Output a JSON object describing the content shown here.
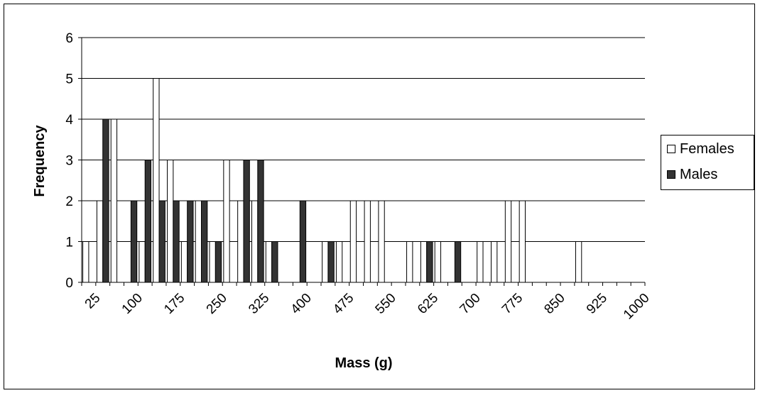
{
  "chart_data": {
    "type": "bar",
    "xlabel": "Mass (g)",
    "ylabel": "Frequency",
    "ylim": [
      0,
      6
    ],
    "yticks": [
      "0",
      "1",
      "2",
      "3",
      "4",
      "5",
      "6"
    ],
    "categories": [
      "25",
      "50",
      "75",
      "100",
      "125",
      "150",
      "175",
      "200",
      "225",
      "250",
      "275",
      "300",
      "325",
      "350",
      "375",
      "400",
      "425",
      "450",
      "475",
      "500",
      "525",
      "550",
      "575",
      "600",
      "625",
      "650",
      "675",
      "700",
      "725",
      "750",
      "775",
      "800",
      "825",
      "850",
      "875",
      "900",
      "925",
      "950",
      "975",
      "1000"
    ],
    "xtick_labels": [
      "25",
      "100",
      "175",
      "250",
      "325",
      "400",
      "475",
      "550",
      "625",
      "700",
      "775",
      "850",
      "925",
      "1000"
    ],
    "grid": "horizontal",
    "legend_position": "right",
    "series": [
      {
        "name": "Females",
        "color": "#ffffff",
        "values": [
          1,
          2,
          4,
          0,
          1,
          5,
          3,
          1,
          2,
          1,
          3,
          2,
          2,
          1,
          0,
          0,
          0,
          1,
          1,
          2,
          2,
          2,
          0,
          1,
          1,
          1,
          0,
          0,
          1,
          1,
          2,
          2,
          0,
          0,
          0,
          1,
          0,
          0,
          0,
          0
        ]
      },
      {
        "name": "Males",
        "color": "#333333",
        "values": [
          0,
          4,
          0,
          2,
          3,
          2,
          2,
          2,
          2,
          1,
          0,
          3,
          3,
          1,
          0,
          2,
          0,
          1,
          0,
          0,
          0,
          0,
          0,
          0,
          1,
          0,
          1,
          0,
          0,
          0,
          0,
          0,
          0,
          0,
          0,
          0,
          0,
          0,
          0,
          0
        ]
      }
    ]
  }
}
